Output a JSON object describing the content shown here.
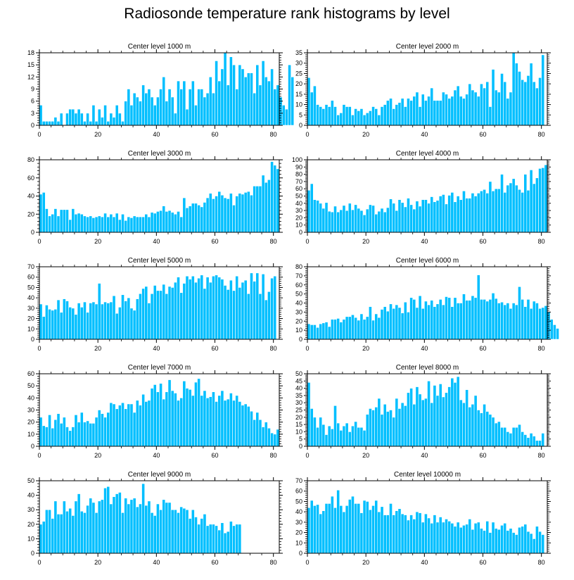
{
  "page": {
    "title": "Radiosonde temperature rank histograms by level",
    "bar_color": "#00bfff"
  },
  "chart_data": [
    {
      "type": "bar",
      "title": "Center level 1000 m",
      "x_start": 0,
      "xticks": [
        0,
        20,
        40,
        60,
        80
      ],
      "ylim": [
        0,
        18
      ],
      "yticks": [
        0,
        3,
        6,
        9,
        12,
        15,
        18
      ],
      "values": [
        5,
        1,
        1,
        1,
        1,
        2,
        1,
        3,
        0,
        3,
        4,
        4,
        3,
        4,
        3,
        1,
        3,
        1,
        5,
        1,
        4,
        2,
        5,
        1,
        3,
        2,
        5,
        3,
        1,
        6,
        9,
        5,
        8,
        7,
        6,
        10,
        8,
        9,
        7,
        5,
        7,
        9,
        12,
        6,
        9,
        7,
        3,
        11,
        9,
        11,
        4,
        9,
        11,
        5,
        9,
        9,
        7,
        8,
        12,
        8,
        16,
        11,
        14,
        18,
        10,
        17,
        15,
        9,
        15,
        14,
        12,
        13,
        13,
        8,
        15,
        10,
        16,
        12,
        11,
        14,
        9,
        10,
        7,
        5,
        4,
        15,
        12
      ]
    },
    {
      "type": "bar",
      "title": "Center level 2000 m",
      "x_start": 0,
      "xticks": [
        0,
        20,
        40,
        60,
        80
      ],
      "ylim": [
        0,
        35
      ],
      "yticks": [
        0,
        5,
        10,
        15,
        20,
        25,
        30,
        35
      ],
      "values": [
        23,
        16,
        19,
        10,
        9,
        8,
        10,
        9,
        12,
        9,
        5,
        6,
        10,
        9,
        9,
        5,
        8,
        7,
        8,
        5,
        6,
        7,
        9,
        8,
        5,
        9,
        10,
        12,
        13,
        8,
        10,
        11,
        13,
        9,
        13,
        12,
        14,
        16,
        9,
        15,
        12,
        14,
        18,
        12,
        12,
        12,
        16,
        15,
        13,
        14,
        17,
        19,
        14,
        13,
        15,
        20,
        17,
        16,
        14,
        20,
        18,
        21,
        9,
        27,
        17,
        16,
        25,
        21,
        13,
        16,
        35,
        30,
        26,
        22,
        21,
        24,
        30,
        21,
        18,
        23,
        34
      ]
    },
    {
      "type": "bar",
      "title": "Center level 3000 m",
      "x_start": 0,
      "xticks": [
        0,
        20,
        40,
        60,
        80
      ],
      "ylim": [
        0,
        80
      ],
      "yticks": [
        0,
        20,
        40,
        60,
        80
      ],
      "values": [
        42,
        44,
        26,
        18,
        20,
        26,
        18,
        25,
        25,
        25,
        14,
        26,
        20,
        21,
        20,
        18,
        17,
        18,
        16,
        17,
        18,
        17,
        21,
        17,
        20,
        17,
        21,
        14,
        20,
        13,
        17,
        16,
        18,
        17,
        17,
        17,
        20,
        17,
        22,
        21,
        23,
        24,
        29,
        23,
        24,
        22,
        20,
        23,
        17,
        38,
        27,
        29,
        32,
        32,
        30,
        28,
        33,
        38,
        43,
        37,
        40,
        45,
        41,
        38,
        37,
        43,
        30,
        40,
        43,
        42,
        44,
        45,
        41,
        51,
        51,
        51,
        63,
        55,
        58,
        78,
        74,
        70
      ]
    },
    {
      "type": "bar",
      "title": "Center level 4000 m",
      "x_start": 0,
      "xticks": [
        0,
        20,
        40,
        60,
        80
      ],
      "ylim": [
        0,
        100
      ],
      "yticks": [
        0,
        10,
        20,
        30,
        40,
        50,
        60,
        70,
        80,
        90,
        100
      ],
      "values": [
        58,
        67,
        45,
        44,
        40,
        33,
        41,
        29,
        28,
        36,
        28,
        31,
        37,
        30,
        40,
        31,
        38,
        33,
        30,
        24,
        32,
        38,
        37,
        25,
        29,
        33,
        28,
        34,
        46,
        40,
        30,
        45,
        41,
        35,
        47,
        38,
        32,
        43,
        36,
        45,
        45,
        40,
        49,
        42,
        44,
        50,
        52,
        39,
        51,
        55,
        42,
        50,
        45,
        57,
        47,
        47,
        54,
        50,
        54,
        57,
        59,
        54,
        70,
        57,
        60,
        60,
        80,
        55,
        65,
        68,
        74,
        65,
        59,
        55,
        80,
        58,
        86,
        67,
        75,
        88,
        89,
        93
      ]
    },
    {
      "type": "bar",
      "title": "Center level 5000 m",
      "x_start": 0,
      "xticks": [
        0,
        20,
        40,
        60,
        80
      ],
      "ylim": [
        0,
        70
      ],
      "yticks": [
        0,
        10,
        20,
        30,
        40,
        50,
        60,
        70
      ],
      "values": [
        34,
        22,
        33,
        29,
        28,
        29,
        38,
        26,
        39,
        37,
        31,
        30,
        24,
        35,
        31,
        36,
        26,
        35,
        36,
        34,
        54,
        34,
        36,
        35,
        36,
        42,
        25,
        31,
        43,
        37,
        40,
        30,
        28,
        39,
        44,
        49,
        51,
        35,
        44,
        52,
        47,
        47,
        53,
        44,
        51,
        50,
        55,
        60,
        45,
        54,
        61,
        58,
        61,
        55,
        59,
        62,
        49,
        60,
        55,
        61,
        62,
        60,
        58,
        52,
        48,
        57,
        47,
        61,
        50,
        55,
        57,
        44,
        64,
        56,
        64,
        44,
        63,
        38,
        46,
        59,
        61
      ]
    },
    {
      "type": "bar",
      "title": "Center level 6000 m",
      "x_start": 0,
      "xticks": [
        0,
        20,
        40,
        60,
        80
      ],
      "ylim": [
        0,
        80
      ],
      "yticks": [
        0,
        10,
        20,
        30,
        40,
        50,
        60,
        70,
        80
      ],
      "values": [
        17,
        16,
        16,
        13,
        17,
        18,
        19,
        14,
        22,
        22,
        23,
        19,
        22,
        25,
        25,
        27,
        24,
        21,
        28,
        22,
        25,
        36,
        21,
        28,
        24,
        33,
        36,
        31,
        39,
        34,
        38,
        35,
        29,
        41,
        30,
        46,
        44,
        35,
        48,
        34,
        42,
        38,
        43,
        36,
        39,
        44,
        38,
        47,
        46,
        36,
        46,
        40,
        40,
        50,
        43,
        43,
        48,
        46,
        71,
        44,
        44,
        42,
        44,
        51,
        45,
        40,
        41,
        38,
        40,
        34,
        40,
        38,
        58,
        44,
        36,
        44,
        34,
        42,
        40,
        34,
        35,
        37,
        30,
        22,
        16,
        12
      ]
    },
    {
      "type": "bar",
      "title": "Center level 7000 m",
      "x_start": 0,
      "xticks": [
        0,
        20,
        40,
        60,
        80
      ],
      "ylim": [
        0,
        60
      ],
      "yticks": [
        0,
        10,
        20,
        30,
        40,
        50,
        60
      ],
      "values": [
        24,
        17,
        16,
        26,
        15,
        22,
        27,
        19,
        24,
        16,
        13,
        16,
        26,
        20,
        28,
        20,
        21,
        19,
        19,
        24,
        30,
        27,
        24,
        28,
        36,
        35,
        31,
        34,
        36,
        31,
        35,
        35,
        28,
        38,
        34,
        43,
        37,
        38,
        48,
        51,
        45,
        52,
        39,
        45,
        55,
        46,
        44,
        38,
        40,
        54,
        48,
        47,
        42,
        53,
        56,
        42,
        46,
        40,
        41,
        45,
        37,
        42,
        46,
        38,
        39,
        44,
        38,
        42,
        37,
        34,
        35,
        33,
        29,
        22,
        28,
        22,
        16,
        20,
        15,
        11,
        10,
        14
      ]
    },
    {
      "type": "bar",
      "title": "Center level 8000 m",
      "x_start": 0,
      "xticks": [
        0,
        20,
        40,
        60,
        80
      ],
      "ylim": [
        0,
        50
      ],
      "yticks": [
        0,
        5,
        10,
        15,
        20,
        25,
        30,
        35,
        40,
        45,
        50
      ],
      "values": [
        44,
        26,
        20,
        13,
        20,
        15,
        8,
        14,
        12,
        28,
        16,
        11,
        14,
        16,
        10,
        14,
        17,
        13,
        13,
        11,
        22,
        26,
        25,
        27,
        33,
        22,
        29,
        24,
        25,
        20,
        33,
        26,
        30,
        28,
        37,
        40,
        29,
        41,
        36,
        32,
        33,
        45,
        30,
        42,
        35,
        43,
        34,
        37,
        41,
        47,
        44,
        48,
        32,
        30,
        39,
        27,
        29,
        35,
        25,
        23,
        29,
        24,
        22,
        20,
        16,
        17,
        13,
        13,
        10,
        9,
        13,
        13,
        15,
        10,
        8,
        6,
        9,
        7,
        4,
        4,
        9
      ]
    },
    {
      "type": "bar",
      "title": "Center level 9000 m",
      "x_start": 0,
      "xticks": [
        0,
        20,
        40,
        60,
        80
      ],
      "ylim": [
        0,
        50
      ],
      "yticks": [
        0,
        10,
        20,
        30,
        40,
        50
      ],
      "values": [
        20,
        22,
        30,
        30,
        24,
        36,
        27,
        27,
        36,
        29,
        31,
        26,
        36,
        41,
        29,
        28,
        33,
        38,
        35,
        28,
        36,
        37,
        45,
        46,
        34,
        39,
        41,
        42,
        28,
        38,
        34,
        37,
        38,
        32,
        34,
        48,
        33,
        36,
        28,
        26,
        34,
        30,
        37,
        35,
        35,
        30,
        30,
        28,
        32,
        31,
        30,
        24,
        30,
        25,
        20,
        24,
        27,
        19,
        20,
        20,
        19,
        16,
        21,
        14,
        15,
        22,
        19,
        20,
        20
      ]
    },
    {
      "type": "bar",
      "title": "Center level 10000 m",
      "x_start": 0,
      "xticks": [
        0,
        20,
        40,
        60,
        80
      ],
      "ylim": [
        0,
        70
      ],
      "yticks": [
        0,
        10,
        20,
        30,
        40,
        50,
        60,
        70
      ],
      "values": [
        44,
        51,
        46,
        47,
        38,
        41,
        48,
        48,
        55,
        44,
        61,
        46,
        40,
        46,
        52,
        55,
        48,
        48,
        39,
        51,
        50,
        42,
        46,
        51,
        40,
        45,
        37,
        37,
        48,
        37,
        41,
        43,
        38,
        37,
        32,
        37,
        33,
        40,
        39,
        30,
        38,
        34,
        29,
        37,
        30,
        35,
        30,
        33,
        31,
        29,
        26,
        30,
        25,
        27,
        28,
        33,
        23,
        29,
        30,
        24,
        22,
        31,
        20,
        30,
        24,
        23,
        27,
        29,
        22,
        24,
        20,
        18,
        25,
        26,
        28,
        21,
        19,
        14,
        26,
        21,
        18
      ]
    }
  ]
}
